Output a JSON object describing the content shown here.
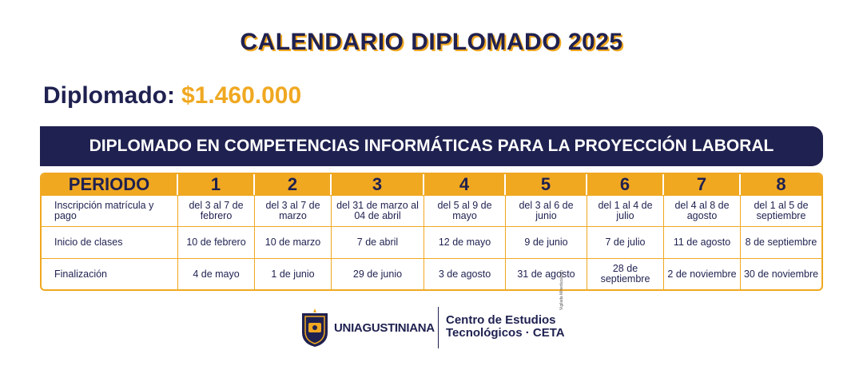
{
  "title": "CALENDARIO DIPLOMADO 2025",
  "price_label": "Diplomado:",
  "price_value": "$1.460.000",
  "program_name": "DIPLOMADO EN COMPETENCIAS INFORMÁTICAS PARA LA PROYECCIÓN LABORAL",
  "table": {
    "header": [
      "PERIODO",
      "1",
      "2",
      "3",
      "4",
      "5",
      "6",
      "7",
      "8"
    ],
    "rows": [
      {
        "label": "Inscripción matrícula y pago",
        "cells": [
          "del 3 al 7 de febrero",
          "del 3 al 7 de marzo",
          "del 31 de marzo al 04 de abril",
          "del 5 al 9 de mayo",
          "del 3 al 6 de junio",
          "del 1 al 4 de julio",
          "del 4 al 8 de agosto",
          "del 1 al 5 de septiembre"
        ]
      },
      {
        "label": "Inicio de clases",
        "cells": [
          "10 de febrero",
          "10 de marzo",
          "7 de abril",
          "12 de mayo",
          "9 de junio",
          "7 de julio",
          "11 de agosto",
          "8 de septiembre"
        ]
      },
      {
        "label": "Finalización",
        "cells": [
          "4 de mayo",
          "1 de junio",
          "29 de junio",
          "3 de agosto",
          "31 de agosto",
          "28 de septiembre",
          "2 de noviembre",
          "30 de noviembre"
        ]
      }
    ]
  },
  "footer": {
    "university": "UNIAGUSTINIANA",
    "center_line1": "Centro de Estudios",
    "center_line2": "Tecnológicos · CETA",
    "tiny_text": "Vigilada Mineducación"
  },
  "colors": {
    "navy": "#1f2150",
    "gold": "#f0a821"
  },
  "icons": {
    "crest": "uniagustiniana-crest-icon"
  }
}
